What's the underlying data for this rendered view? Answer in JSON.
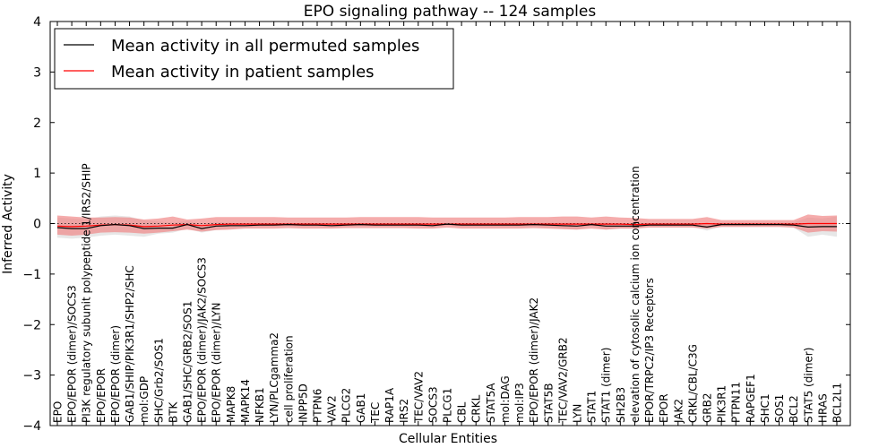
{
  "chart_data": {
    "type": "line",
    "title": "EPO signaling pathway -- 124 samples",
    "xlabel": "Cellular Entities",
    "ylabel": "Inferred Activity",
    "ylim": [
      -4,
      4
    ],
    "yticks": [
      "−4",
      "−3",
      "−2",
      "−1",
      "0",
      "1",
      "2",
      "3",
      "4"
    ],
    "ytick_values": [
      -4,
      -3,
      -2,
      -1,
      0,
      1,
      2,
      3,
      4
    ],
    "grid": false,
    "legend_position": "top-left",
    "categories": [
      "EPO",
      "EPO/EPOR (dimer)/SOCS3",
      "PI3K regulatory subunit polypeptide 1/IRS2/SHIP",
      "EPO/EPOR",
      "EPO/EPOR (dimer)",
      "GAB1/SHIP/PIK3R1/SHP2/SHC",
      "mol:GDP",
      "SHC/Grb2/SOS1",
      "BTK",
      "GAB1/SHC/GRB2/SOS1",
      "EPO/EPOR (dimer)/JAK2/SOCS3",
      "EPO/EPOR (dimer)/LYN",
      "MAPK8",
      "MAPK14",
      "NFKB1",
      "LYN/PLCgamma2",
      "cell proliferation",
      "INPP5D",
      "PTPN6",
      "VAV2",
      "PLCG2",
      "GAB1",
      "TEC",
      "RAP1A",
      "IRS2",
      "TEC/VAV2",
      "SOCS3",
      "PLCG1",
      "CBL",
      "CRKL",
      "STAT5A",
      "mol:DAG",
      "mol:IP3",
      "EPO/EPOR (dimer)/JAK2",
      "STAT5B",
      "TEC/VAV2/GRB2",
      "LYN",
      "STAT1",
      "STAT1 (dimer)",
      "SH2B3",
      "elevation of cytosolic calcium ion concentration",
      "EPOR/TRPC2/IP3 Receptors",
      "EPOR",
      "JAK2",
      "CRKL/CBL/C3G",
      "GRB2",
      "PIK3R1",
      "PTPN11",
      "RAPGEF1",
      "SHC1",
      "SOS1",
      "BCL2",
      "STAT5 (dimer)",
      "HRAS",
      "BCL2L1"
    ],
    "series": [
      {
        "name": "Mean activity in all permuted samples",
        "color": "#000000",
        "band_color": "#d3d3d3",
        "mean": [
          -0.08,
          -0.1,
          -0.1,
          -0.04,
          -0.02,
          -0.04,
          -0.1,
          -0.09,
          -0.09,
          -0.02,
          -0.1,
          -0.05,
          -0.04,
          -0.04,
          -0.03,
          -0.03,
          -0.02,
          -0.03,
          -0.03,
          -0.04,
          -0.03,
          -0.02,
          -0.03,
          -0.03,
          -0.03,
          -0.03,
          -0.04,
          -0.01,
          -0.03,
          -0.03,
          -0.03,
          -0.03,
          -0.03,
          -0.02,
          -0.03,
          -0.04,
          -0.05,
          -0.02,
          -0.05,
          -0.05,
          -0.05,
          -0.03,
          -0.03,
          -0.03,
          -0.03,
          -0.07,
          -0.02,
          -0.02,
          -0.02,
          -0.02,
          -0.02,
          -0.03,
          -0.07,
          -0.06,
          -0.06
        ],
        "lower": [
          -0.28,
          -0.3,
          -0.28,
          -0.24,
          -0.22,
          -0.24,
          -0.26,
          -0.2,
          -0.18,
          -0.1,
          -0.18,
          -0.13,
          -0.1,
          -0.08,
          -0.07,
          -0.06,
          -0.05,
          -0.07,
          -0.07,
          -0.08,
          -0.07,
          -0.05,
          -0.06,
          -0.06,
          -0.06,
          -0.06,
          -0.08,
          -0.04,
          -0.07,
          -0.07,
          -0.07,
          -0.07,
          -0.07,
          -0.06,
          -0.08,
          -0.1,
          -0.12,
          -0.05,
          -0.12,
          -0.1,
          -0.1,
          -0.07,
          -0.07,
          -0.07,
          -0.07,
          -0.14,
          -0.06,
          -0.06,
          -0.06,
          -0.06,
          -0.06,
          -0.08,
          -0.26,
          -0.22,
          -0.26
        ],
        "upper": [
          0.12,
          0.1,
          0.08,
          0.14,
          0.16,
          0.14,
          0.06,
          0.04,
          0.02,
          0.05,
          0.0,
          0.03,
          0.02,
          0.0,
          0.01,
          0.0,
          0.01,
          0.01,
          0.01,
          0.0,
          0.01,
          0.01,
          0.0,
          0.0,
          0.0,
          0.0,
          0.0,
          0.02,
          0.01,
          0.01,
          0.01,
          0.01,
          0.01,
          0.02,
          0.02,
          0.02,
          0.02,
          0.01,
          0.02,
          0.0,
          0.0,
          0.01,
          0.01,
          0.01,
          0.01,
          0.0,
          0.02,
          0.02,
          0.02,
          0.02,
          0.02,
          0.02,
          0.12,
          0.1,
          0.14
        ]
      },
      {
        "name": "Mean activity in patient samples",
        "color": "#ff0000",
        "band_color": "#f08080",
        "mean": [
          -0.05,
          -0.06,
          -0.05,
          -0.03,
          -0.02,
          -0.03,
          -0.06,
          -0.05,
          -0.03,
          -0.02,
          -0.04,
          -0.02,
          -0.01,
          -0.01,
          -0.01,
          -0.01,
          -0.01,
          -0.01,
          -0.01,
          -0.01,
          -0.01,
          -0.01,
          -0.01,
          -0.01,
          -0.01,
          -0.01,
          -0.01,
          -0.01,
          -0.01,
          -0.01,
          -0.01,
          -0.01,
          -0.01,
          -0.01,
          -0.01,
          -0.01,
          -0.01,
          -0.01,
          -0.01,
          -0.01,
          -0.02,
          -0.01,
          -0.01,
          -0.01,
          -0.01,
          0.0,
          -0.01,
          -0.01,
          -0.01,
          -0.01,
          -0.01,
          -0.01,
          0.0,
          0.0,
          0.0
        ],
        "lower": [
          -0.22,
          -0.24,
          -0.22,
          -0.18,
          -0.17,
          -0.18,
          -0.2,
          -0.18,
          -0.15,
          -0.12,
          -0.16,
          -0.13,
          -0.12,
          -0.1,
          -0.1,
          -0.1,
          -0.09,
          -0.1,
          -0.1,
          -0.1,
          -0.09,
          -0.09,
          -0.09,
          -0.09,
          -0.09,
          -0.1,
          -0.1,
          -0.08,
          -0.1,
          -0.1,
          -0.1,
          -0.1,
          -0.1,
          -0.09,
          -0.1,
          -0.11,
          -0.12,
          -0.1,
          -0.12,
          -0.1,
          -0.1,
          -0.08,
          -0.08,
          -0.08,
          -0.08,
          -0.1,
          -0.07,
          -0.07,
          -0.07,
          -0.07,
          -0.07,
          -0.08,
          -0.18,
          -0.15,
          -0.16
        ],
        "upper": [
          0.16,
          0.14,
          0.12,
          0.12,
          0.13,
          0.12,
          0.08,
          0.1,
          0.14,
          0.08,
          0.1,
          0.13,
          0.13,
          0.13,
          0.13,
          0.13,
          0.12,
          0.12,
          0.12,
          0.12,
          0.12,
          0.13,
          0.13,
          0.13,
          0.13,
          0.13,
          0.12,
          0.12,
          0.12,
          0.12,
          0.12,
          0.12,
          0.13,
          0.13,
          0.13,
          0.14,
          0.14,
          0.12,
          0.14,
          0.12,
          0.11,
          0.09,
          0.09,
          0.09,
          0.09,
          0.13,
          0.07,
          0.07,
          0.07,
          0.07,
          0.07,
          0.07,
          0.18,
          0.15,
          0.16
        ]
      }
    ]
  }
}
